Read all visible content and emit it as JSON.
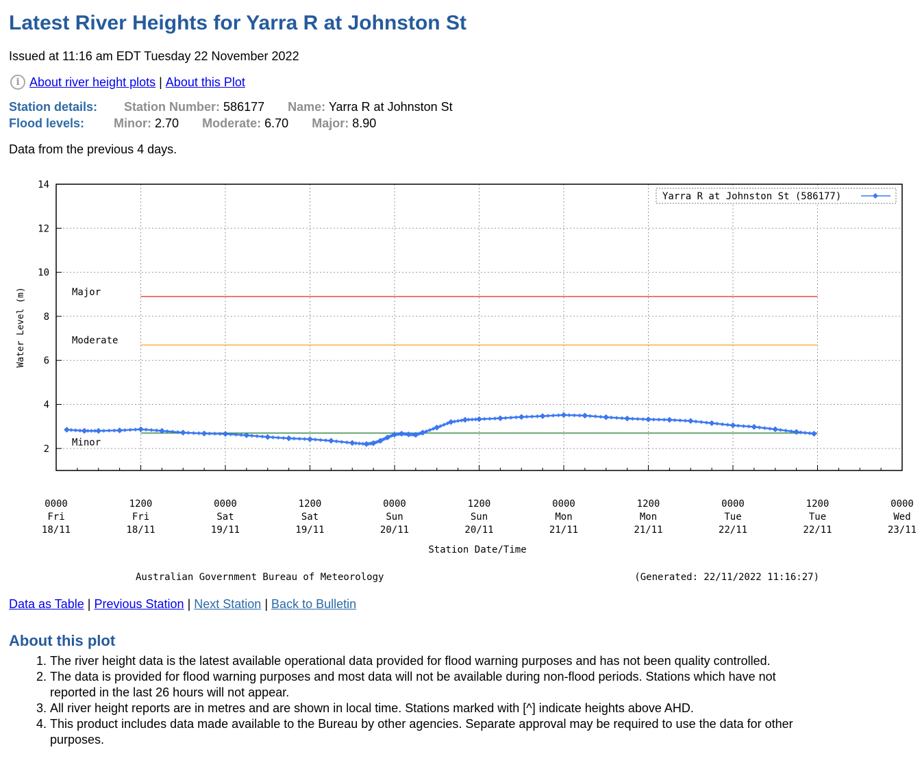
{
  "title": "Latest River Heights for Yarra R at Johnston St",
  "issued": "Issued at 11:16 am EDT Tuesday 22 November 2022",
  "top_links": {
    "about_river_height_plots": "About river height plots",
    "separator": "|",
    "about_this_plot": "About this Plot"
  },
  "station": {
    "details_label": "Station details:",
    "number_label": "Station Number:",
    "number": "586177",
    "name_label": "Name:",
    "name": "Yarra R at Johnston St"
  },
  "flood": {
    "label": "Flood levels:",
    "minor_label": "Minor:",
    "minor": "2.70",
    "moderate_label": "Moderate:",
    "moderate": "6.70",
    "major_label": "Major:",
    "major": "8.90"
  },
  "data_period": "Data from the previous 4 days.",
  "chart_data": {
    "type": "line",
    "ylabel": "Water Level (m)",
    "xlabel": "Station Date/Time",
    "ylim": [
      1,
      14
    ],
    "xlim_hours": [
      0,
      120
    ],
    "grid": true,
    "yticks": [
      2,
      4,
      6,
      8,
      10,
      12,
      14
    ],
    "xticks": [
      {
        "h": 0,
        "l1": "0000",
        "l2": "Fri",
        "l3": "18/11"
      },
      {
        "h": 12,
        "l1": "1200",
        "l2": "Fri",
        "l3": "18/11"
      },
      {
        "h": 24,
        "l1": "0000",
        "l2": "Sat",
        "l3": "19/11"
      },
      {
        "h": 36,
        "l1": "1200",
        "l2": "Sat",
        "l3": "19/11"
      },
      {
        "h": 48,
        "l1": "0000",
        "l2": "Sun",
        "l3": "20/11"
      },
      {
        "h": 60,
        "l1": "1200",
        "l2": "Sun",
        "l3": "20/11"
      },
      {
        "h": 72,
        "l1": "0000",
        "l2": "Mon",
        "l3": "21/11"
      },
      {
        "h": 84,
        "l1": "1200",
        "l2": "Mon",
        "l3": "21/11"
      },
      {
        "h": 96,
        "l1": "0000",
        "l2": "Tue",
        "l3": "22/11"
      },
      {
        "h": 108,
        "l1": "1200",
        "l2": "Tue",
        "l3": "22/11"
      },
      {
        "h": 120,
        "l1": "0000",
        "l2": "Wed",
        "l3": "23/11"
      }
    ],
    "thresholds": [
      {
        "name": "Major",
        "value": 8.9,
        "color": "#e84c3d",
        "x_start": 12,
        "x_end": 108
      },
      {
        "name": "Moderate",
        "value": 6.7,
        "color": "#f5b642",
        "x_start": 12,
        "x_end": 108
      },
      {
        "name": "Minor",
        "value": 2.7,
        "color": "#3a8a4a",
        "x_start": 12,
        "x_end": 108
      }
    ],
    "series": [
      {
        "name": "Yarra R at Johnston St (586177)",
        "color": "#3c78f0",
        "x": [
          1.5,
          4,
          6,
          9,
          12,
          15,
          18,
          21,
          24,
          27,
          30,
          33,
          36,
          39,
          42,
          44,
          45,
          46,
          47,
          48,
          49,
          50,
          51,
          52,
          54,
          56,
          58,
          60,
          63,
          66,
          69,
          72,
          75,
          78,
          81,
          84,
          87,
          90,
          93,
          96,
          99,
          102,
          105,
          107.5
        ],
        "values": [
          2.85,
          2.8,
          2.8,
          2.82,
          2.87,
          2.8,
          2.72,
          2.68,
          2.66,
          2.6,
          2.52,
          2.46,
          2.42,
          2.35,
          2.25,
          2.2,
          2.24,
          2.35,
          2.5,
          2.63,
          2.67,
          2.64,
          2.62,
          2.72,
          2.95,
          3.2,
          3.3,
          3.33,
          3.37,
          3.43,
          3.47,
          3.52,
          3.49,
          3.42,
          3.36,
          3.32,
          3.3,
          3.25,
          3.15,
          3.05,
          2.98,
          2.87,
          2.75,
          2.67
        ]
      }
    ],
    "legend": "top-right",
    "footer_left": "Australian Government Bureau of Meteorology",
    "footer_right": "(Generated: 22/11/2022 11:16:27)"
  },
  "bottom_links": {
    "data_as_table": "Data as Table",
    "previous_station": "Previous Station",
    "next_station": "Next Station",
    "back_to_bulletin": "Back to Bulletin",
    "separator": "|"
  },
  "about": {
    "heading": "About this plot",
    "items": [
      "The river height data is the latest available operational data provided for flood warning purposes and has not been quality controlled.",
      "The data is provided for flood warning purposes and most data will not be available during non-flood periods. Stations which have not reported in the last 26 hours will not appear.",
      "All river height reports are in metres and are shown in local time. Stations marked with [^] indicate heights above AHD.",
      "This product includes data made available to the Bureau by other agencies. Separate approval may be required to use the data for other purposes."
    ]
  }
}
